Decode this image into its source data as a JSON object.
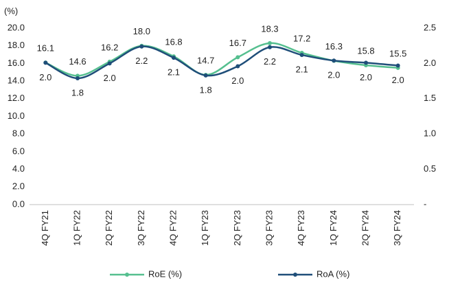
{
  "chart_data": {
    "type": "line",
    "y_unit_label": "(%)",
    "categories": [
      "4Q FY21",
      "1Q FY22",
      "2Q FY22",
      "3Q FY22",
      "4Q FY22",
      "1Q FY23",
      "2Q FY23",
      "3Q FY23",
      "4Q FY23",
      "1Q FY24",
      "2Q FY24",
      "3Q FY24"
    ],
    "series": [
      {
        "name": "RoE (%)",
        "color": "#55bf8f",
        "axis": "y",
        "values": [
          16.1,
          14.6,
          16.2,
          18.0,
          16.8,
          14.7,
          16.7,
          18.3,
          17.2,
          16.3,
          15.8,
          15.5
        ],
        "value_labels": [
          "16.1",
          "14.6",
          "16.2",
          "18.0",
          "16.8",
          "14.7",
          "16.7",
          "18.3",
          "17.2",
          "16.3",
          "15.8",
          "15.5"
        ]
      },
      {
        "name": "RoA (%)",
        "color": "#1f4e79",
        "axis": "y2",
        "values": [
          2.01,
          1.79,
          2.0,
          2.24,
          2.08,
          1.83,
          1.96,
          2.23,
          2.12,
          2.04,
          2.01,
          1.97
        ],
        "value_labels": [
          "2.0",
          "1.8",
          "2.0",
          "2.2",
          "2.1",
          "1.8",
          "2.0",
          "2.2",
          "2.1",
          "2.0",
          "2.0",
          "2.0"
        ]
      }
    ],
    "ylim": [
      0,
      20
    ],
    "yticks": [
      {
        "value": 0,
        "label": "0.0"
      },
      {
        "value": 2,
        "label": "2.0"
      },
      {
        "value": 4,
        "label": "4.0"
      },
      {
        "value": 6,
        "label": "6.0"
      },
      {
        "value": 8,
        "label": "8.0"
      },
      {
        "value": 10,
        "label": "10.0"
      },
      {
        "value": 12,
        "label": "12.0"
      },
      {
        "value": 14,
        "label": "14.0"
      },
      {
        "value": 16,
        "label": "16.0"
      },
      {
        "value": 18,
        "label": "18.0"
      },
      {
        "value": 20,
        "label": "20.0"
      }
    ],
    "y2lim": [
      0,
      2.5
    ],
    "y2ticks": [
      {
        "value": 0,
        "label": "-"
      },
      0.5,
      {
        "value": 1,
        "label": "1.0"
      },
      1.5,
      {
        "value": 2,
        "label": "2.0"
      },
      2.5
    ],
    "legend": "bottom"
  }
}
